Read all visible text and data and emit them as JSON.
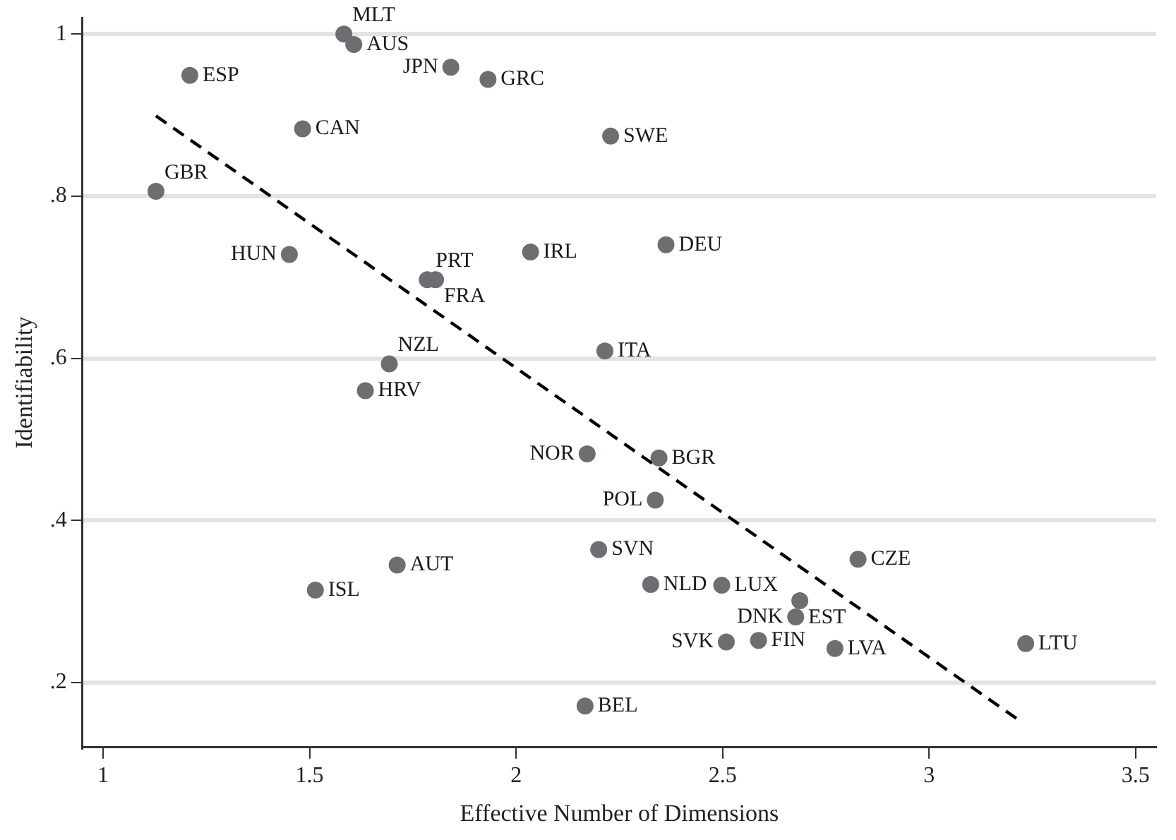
{
  "chart_data": {
    "type": "scatter",
    "xlabel": "Effective Number of Dimensions",
    "ylabel": "Identifiability",
    "xlim": [
      0.95,
      3.55
    ],
    "xticks": [
      1,
      1.5,
      2,
      2.5,
      3,
      3.5
    ],
    "ylim": [
      0.12,
      1.02
    ],
    "yticks": [
      {
        "value": 0.2,
        "label": ".2"
      },
      {
        "value": 0.4,
        "label": ".4"
      },
      {
        "value": 0.6,
        "label": ".6"
      },
      {
        "value": 0.8,
        "label": ".8"
      },
      {
        "value": 1,
        "label": "1"
      }
    ],
    "grid": "y",
    "legend": false,
    "series": [
      {
        "type": "scatter",
        "color": "#6d6e72",
        "marker": "circle",
        "x": [
          1.583,
          1.607,
          1.842,
          1.932,
          1.21,
          1.483,
          2.229,
          1.128,
          1.451,
          1.785,
          1.805,
          2.035,
          2.363,
          2.215,
          1.693,
          1.635,
          2.172,
          2.346,
          2.337,
          2.2,
          1.712,
          1.514,
          2.326,
          2.498,
          2.828,
          2.687,
          2.677,
          2.509,
          2.587,
          2.772,
          3.234,
          2.167
        ],
        "values": [
          1.0,
          0.987,
          0.959,
          0.944,
          0.949,
          0.883,
          0.874,
          0.806,
          0.728,
          0.697,
          0.697,
          0.731,
          0.74,
          0.609,
          0.593,
          0.56,
          0.482,
          0.477,
          0.425,
          0.364,
          0.345,
          0.314,
          0.321,
          0.32,
          0.352,
          0.301,
          0.281,
          0.25,
          0.252,
          0.242,
          0.248,
          0.171
        ]
      },
      {
        "type": "line",
        "color": "#000000",
        "marker": "none",
        "line_style": "dashed",
        "x": [
          1.128,
          3.222
        ],
        "values": [
          0.899,
          0.152
        ]
      }
    ],
    "annotations": [
      {
        "text": "MLT",
        "x": 1.583,
        "y": 1.0
      },
      {
        "text": "AUS",
        "x": 1.607,
        "y": 0.987
      },
      {
        "text": "JPN",
        "x": 1.842,
        "y": 0.959
      },
      {
        "text": "GRC",
        "x": 1.932,
        "y": 0.944
      },
      {
        "text": "ESP",
        "x": 1.21,
        "y": 0.949
      },
      {
        "text": "CAN",
        "x": 1.483,
        "y": 0.883
      },
      {
        "text": "SWE",
        "x": 2.229,
        "y": 0.874
      },
      {
        "text": "GBR",
        "x": 1.128,
        "y": 0.806
      },
      {
        "text": "HUN",
        "x": 1.451,
        "y": 0.728
      },
      {
        "text": "PRT",
        "x": 1.785,
        "y": 0.697
      },
      {
        "text": "FRA",
        "x": 1.805,
        "y": 0.697
      },
      {
        "text": "IRL",
        "x": 2.035,
        "y": 0.731
      },
      {
        "text": "DEU",
        "x": 2.363,
        "y": 0.74
      },
      {
        "text": "ITA",
        "x": 2.215,
        "y": 0.609
      },
      {
        "text": "NZL",
        "x": 1.693,
        "y": 0.593
      },
      {
        "text": "HRV",
        "x": 1.635,
        "y": 0.56
      },
      {
        "text": "NOR",
        "x": 2.172,
        "y": 0.482
      },
      {
        "text": "BGR",
        "x": 2.346,
        "y": 0.477
      },
      {
        "text": "POL",
        "x": 2.337,
        "y": 0.425
      },
      {
        "text": "SVN",
        "x": 2.2,
        "y": 0.364
      },
      {
        "text": "AUT",
        "x": 1.712,
        "y": 0.345
      },
      {
        "text": "ISL",
        "x": 1.514,
        "y": 0.314
      },
      {
        "text": "NLD",
        "x": 2.326,
        "y": 0.321
      },
      {
        "text": "LUX",
        "x": 2.498,
        "y": 0.32
      },
      {
        "text": "CZE",
        "x": 2.828,
        "y": 0.352
      },
      {
        "text": "EST",
        "x": 2.687,
        "y": 0.301
      },
      {
        "text": "DNK",
        "x": 2.677,
        "y": 0.281
      },
      {
        "text": "SVK",
        "x": 2.509,
        "y": 0.25
      },
      {
        "text": "FIN",
        "x": 2.587,
        "y": 0.252
      },
      {
        "text": "LVA",
        "x": 2.772,
        "y": 0.242
      },
      {
        "text": "LTU",
        "x": 3.234,
        "y": 0.248
      },
      {
        "text": "BEL",
        "x": 2.167,
        "y": 0.171
      }
    ]
  }
}
